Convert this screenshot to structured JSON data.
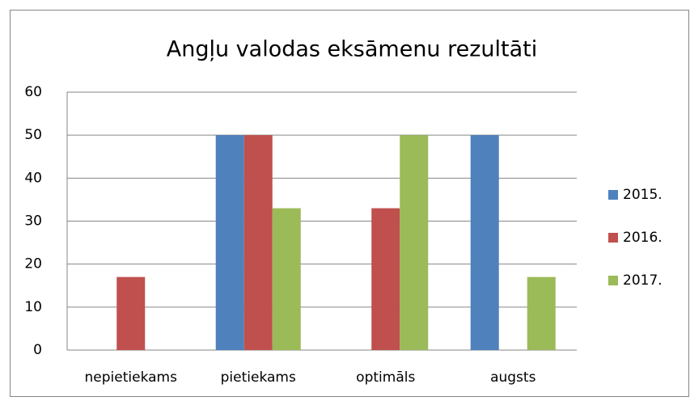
{
  "chart_data": {
    "type": "bar",
    "title": "Angļu valodas eksāmenu rezultāti",
    "categories": [
      "nepietiekams",
      "pietiekams",
      "optimāls",
      "augsts"
    ],
    "series": [
      {
        "name": "2015.",
        "color": "#4f81bd",
        "values": [
          0,
          50,
          0,
          50
        ]
      },
      {
        "name": "2016.",
        "color": "#c0504d",
        "values": [
          17,
          50,
          33,
          0
        ]
      },
      {
        "name": "2017.",
        "color": "#9bbb59",
        "values": [
          0,
          33,
          50,
          17
        ]
      }
    ],
    "ylim": [
      0,
      60
    ],
    "yticks": [
      0,
      10,
      20,
      30,
      40,
      50,
      60
    ],
    "grid": true,
    "legend": "right"
  }
}
